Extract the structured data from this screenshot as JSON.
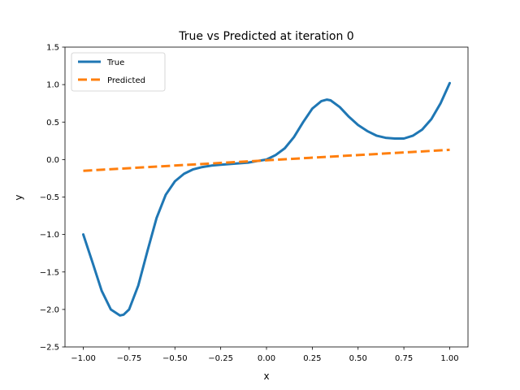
{
  "chart_data": {
    "type": "line",
    "title": "True vs Predicted at iteration 0",
    "xlabel": "x",
    "ylabel": "y",
    "xlim": [
      -1.1,
      1.1
    ],
    "ylim": [
      -2.5,
      1.5
    ],
    "xticks": [
      "−1.00",
      "−0.75",
      "−0.50",
      "−0.25",
      "0.00",
      "0.25",
      "0.50",
      "0.75",
      "1.00"
    ],
    "xtick_values": [
      -1.0,
      -0.75,
      -0.5,
      -0.25,
      0.0,
      0.25,
      0.5,
      0.75,
      1.0
    ],
    "yticks": [
      "−2.5",
      "−2.0",
      "−1.5",
      "−1.0",
      "−0.5",
      "0.0",
      "0.5",
      "1.0",
      "1.5"
    ],
    "ytick_values": [
      -2.5,
      -2.0,
      -1.5,
      -1.0,
      -0.5,
      0.0,
      0.5,
      1.0,
      1.5
    ],
    "grid": false,
    "legend_position": "upper-left",
    "series": [
      {
        "name": "True",
        "color": "#1f77b4",
        "style": "solid",
        "x": [
          -1.0,
          -0.95,
          -0.9,
          -0.85,
          -0.8,
          -0.78,
          -0.75,
          -0.7,
          -0.65,
          -0.6,
          -0.55,
          -0.5,
          -0.45,
          -0.4,
          -0.35,
          -0.3,
          -0.25,
          -0.2,
          -0.15,
          -0.1,
          -0.05,
          0.0,
          0.05,
          0.1,
          0.15,
          0.2,
          0.25,
          0.3,
          0.33,
          0.35,
          0.4,
          0.45,
          0.5,
          0.55,
          0.6,
          0.65,
          0.7,
          0.75,
          0.8,
          0.85,
          0.9,
          0.95,
          1.0
        ],
        "y": [
          -1.0,
          -1.37,
          -1.75,
          -2.0,
          -2.08,
          -2.07,
          -2.0,
          -1.68,
          -1.22,
          -0.78,
          -0.47,
          -0.29,
          -0.19,
          -0.13,
          -0.1,
          -0.08,
          -0.07,
          -0.06,
          -0.05,
          -0.04,
          -0.02,
          0.0,
          0.06,
          0.15,
          0.3,
          0.5,
          0.68,
          0.78,
          0.8,
          0.79,
          0.7,
          0.57,
          0.46,
          0.38,
          0.32,
          0.29,
          0.28,
          0.28,
          0.32,
          0.4,
          0.54,
          0.75,
          1.02
        ]
      },
      {
        "name": "Predicted",
        "color": "#ff7f0e",
        "style": "dashed",
        "x": [
          -1.0,
          1.0
        ],
        "y": [
          -0.15,
          0.13
        ]
      }
    ]
  }
}
